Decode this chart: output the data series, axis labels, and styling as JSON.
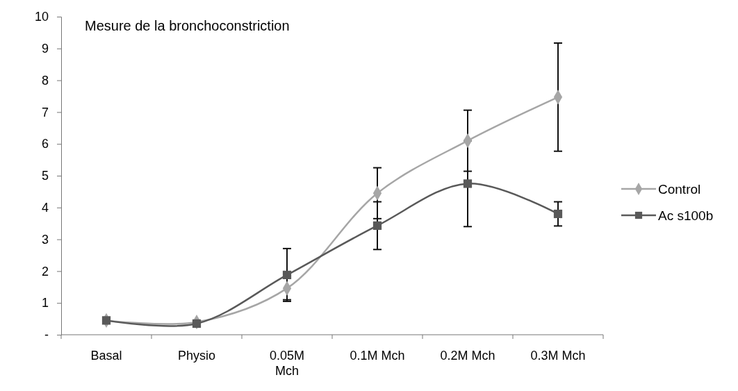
{
  "chart_data": {
    "type": "line",
    "title": "Mesure de la bronchoconstriction",
    "categories": [
      "Basal",
      "Physio",
      "0.05M Mch",
      "0.1M Mch",
      "0.2M Mch",
      "0.3M Mch"
    ],
    "ylim": [
      0,
      10
    ],
    "yticks": [
      {
        "value": 0,
        "label": "-"
      },
      1,
      2,
      3,
      4,
      5,
      6,
      7,
      8,
      9,
      10
    ],
    "legend": "right",
    "series": [
      {
        "name": "Control",
        "color": "#a6a6a6",
        "marker": "diamond",
        "values": [
          0.45,
          0.4,
          1.46,
          4.45,
          6.1,
          7.47
        ],
        "errors": [
          null,
          null,
          0.36,
          0.8,
          0.96,
          1.7
        ]
      },
      {
        "name": "Ac s100b",
        "color": "#595959",
        "marker": "square",
        "values": [
          0.45,
          0.35,
          1.88,
          3.43,
          4.75,
          3.8
        ],
        "errors": [
          null,
          null,
          0.83,
          0.75,
          1.35,
          0.38
        ]
      }
    ]
  }
}
